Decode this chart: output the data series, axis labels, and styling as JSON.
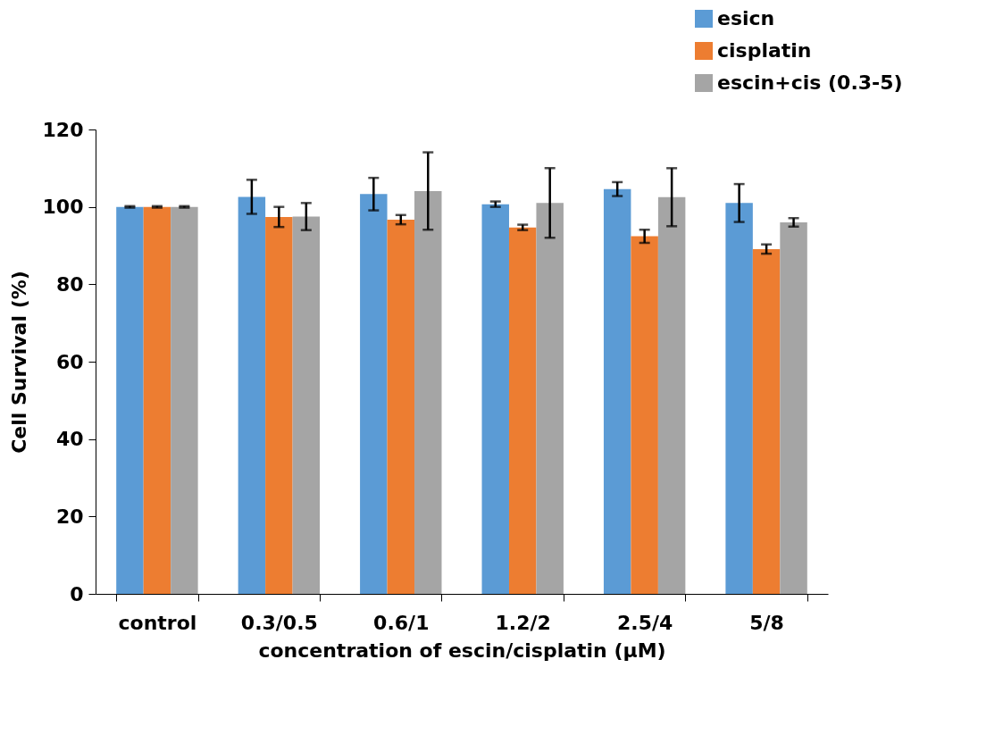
{
  "chart_data": {
    "type": "bar",
    "xlabel": "concentration of escin/cisplatin (μM)",
    "ylabel": "Cell Survival (%)",
    "categories": [
      "control",
      "0.3/0.5",
      "0.6/1",
      "1.2/2",
      "2.5/4",
      "5/8"
    ],
    "series": [
      {
        "name": "esicn",
        "color": "#5b9bd5",
        "values": [
          100,
          102.6,
          103.3,
          100.7,
          104.6,
          101
        ],
        "errors": [
          0.2,
          4.4,
          4.2,
          0.7,
          1.8,
          4.9
        ]
      },
      {
        "name": "cisplatin",
        "color": "#ed7d31",
        "values": [
          100,
          97.4,
          96.7,
          94.7,
          92.4,
          89.1
        ],
        "errors": [
          0.2,
          2.6,
          1.2,
          0.7,
          1.7,
          1.2
        ]
      },
      {
        "name": "escin+cis (0.3-5)",
        "color": "#a5a5a5",
        "values": [
          100,
          97.5,
          104.1,
          101,
          102.5,
          96
        ],
        "errors": [
          0.2,
          3.5,
          10,
          9,
          7.5,
          1.1
        ]
      }
    ],
    "ylim": [
      0,
      120
    ],
    "yticks": [
      0,
      20,
      40,
      60,
      80,
      100,
      120
    ],
    "grid": false,
    "legend": "top right"
  }
}
